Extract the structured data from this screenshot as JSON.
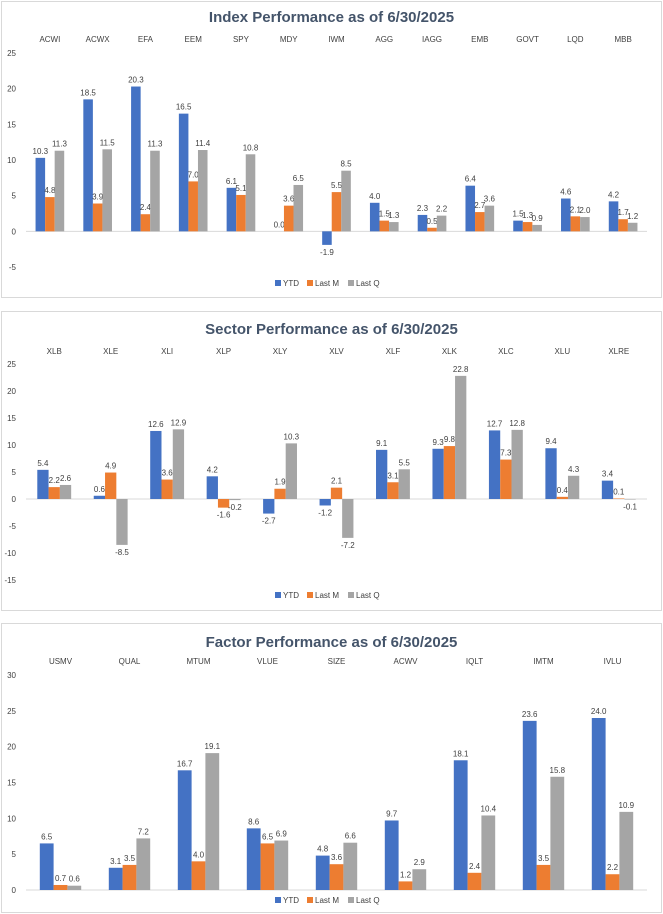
{
  "chart_data": [
    {
      "type": "bar",
      "title": "Index Performance as of 6/30/2025",
      "categories": [
        "ACWI",
        "ACWX",
        "EFA",
        "EEM",
        "SPY",
        "MDY",
        "IWM",
        "AGG",
        "IAGG",
        "EMB",
        "GOVT",
        "LQD",
        "MBB"
      ],
      "series": [
        {
          "name": "YTD",
          "values": [
            10.3,
            18.5,
            20.3,
            16.5,
            6.1,
            0.0,
            -1.9,
            4.0,
            2.3,
            6.4,
            1.5,
            4.6,
            4.2
          ]
        },
        {
          "name": "Last M",
          "values": [
            4.8,
            3.9,
            2.4,
            7.0,
            5.1,
            3.6,
            5.5,
            1.5,
            0.5,
            2.7,
            1.3,
            2.1,
            1.7
          ]
        },
        {
          "name": "Last Q",
          "values": [
            11.3,
            11.5,
            11.3,
            11.4,
            10.8,
            6.5,
            8.5,
            1.3,
            2.2,
            3.6,
            0.9,
            2.0,
            1.2
          ]
        }
      ],
      "labels": [
        [
          "10.3",
          "18.5",
          "20.3",
          "16.5",
          "6.1",
          "0.0",
          "-1.9",
          "4.0",
          "2.3",
          "6.4",
          "1.5",
          "4.6",
          "4.2"
        ],
        [
          "4.8",
          "3.9",
          "2.4",
          "7.0",
          "5.1",
          "3.6",
          "5.5",
          "1.5",
          "0.5",
          "2.7",
          "1.3",
          "2.1",
          "1.7"
        ],
        [
          "11.3",
          "11.5",
          "11.3",
          "11.4",
          "10.8",
          "6.5",
          "8.5",
          "1.3",
          "2.2",
          "3.6",
          "0.9",
          "2.0",
          "1.2"
        ]
      ],
      "ylim": [
        -5,
        25
      ],
      "yticks": [
        -5,
        0,
        5,
        10,
        15,
        20,
        25
      ],
      "legend": "bottom",
      "grid": false
    },
    {
      "type": "bar",
      "title": "Sector Performance as of 6/30/2025",
      "categories": [
        "XLB",
        "XLE",
        "XLI",
        "XLP",
        "XLY",
        "XLV",
        "XLF",
        "XLK",
        "XLC",
        "XLU",
        "XLRE"
      ],
      "series": [
        {
          "name": "YTD",
          "values": [
            5.4,
            0.6,
            12.6,
            4.2,
            -2.7,
            -1.2,
            9.1,
            9.3,
            12.7,
            9.4,
            3.4
          ]
        },
        {
          "name": "Last M",
          "values": [
            2.2,
            4.9,
            3.6,
            -1.6,
            1.9,
            2.1,
            3.1,
            9.8,
            7.3,
            0.4,
            0.1
          ]
        },
        {
          "name": "Last Q",
          "values": [
            2.6,
            -8.5,
            12.9,
            -0.2,
            10.3,
            -7.2,
            5.5,
            22.8,
            12.8,
            4.3,
            -0.1
          ]
        }
      ],
      "labels": [
        [
          "5.4",
          "0.6",
          "12.6",
          "4.2",
          "-2.7",
          "-1.2",
          "9.1",
          "9.3",
          "12.7",
          "9.4",
          "3.4"
        ],
        [
          "2.2",
          "4.9",
          "3.6",
          "-1.6",
          "1.9",
          "2.1",
          "3.1",
          "9.8",
          "7.3",
          "0.4",
          "0.1"
        ],
        [
          "2.6",
          "-8.5",
          "12.9",
          "-0.2",
          "10.3",
          "-7.2",
          "5.5",
          "22.8",
          "12.8",
          "4.3",
          "-0.1"
        ]
      ],
      "ylim": [
        -15,
        25
      ],
      "yticks": [
        -15,
        -10,
        -5,
        0,
        5,
        10,
        15,
        20,
        25
      ],
      "legend": "bottom",
      "grid": false
    },
    {
      "type": "bar",
      "title": "Factor Performance as of 6/30/2025",
      "categories": [
        "USMV",
        "QUAL",
        "MTUM",
        "VLUE",
        "SIZE",
        "ACWV",
        "IQLT",
        "IMTM",
        "IVLU"
      ],
      "series": [
        {
          "name": "YTD",
          "values": [
            6.5,
            3.1,
            16.7,
            8.6,
            4.8,
            9.7,
            18.1,
            23.6,
            24.0
          ]
        },
        {
          "name": "Last M",
          "values": [
            0.7,
            3.5,
            4.0,
            6.5,
            3.6,
            1.2,
            2.4,
            3.5,
            2.2
          ]
        },
        {
          "name": "Last Q",
          "values": [
            0.6,
            7.2,
            19.1,
            6.9,
            6.6,
            2.9,
            10.4,
            15.8,
            10.9
          ]
        }
      ],
      "labels": [
        [
          "6.5",
          "3.1",
          "16.7",
          "8.6",
          "4.8",
          "9.7",
          "18.1",
          "23.6",
          "24.0"
        ],
        [
          "0.7",
          "3.5",
          "4.0",
          "6.5",
          "3.6",
          "1.2",
          "2.4",
          "3.5",
          "2.2"
        ],
        [
          "0.6",
          "7.2",
          "19.1",
          "6.9",
          "6.6",
          "2.9",
          "10.4",
          "15.8",
          "10.9"
        ]
      ],
      "ylim": [
        0,
        30
      ],
      "yticks": [
        0,
        5,
        10,
        15,
        20,
        25,
        30
      ],
      "legend": "bottom",
      "grid": false
    }
  ],
  "colors": {
    "YTD": "#4472c4",
    "Last M": "#ed7d31",
    "Last Q": "#a5a5a5"
  }
}
